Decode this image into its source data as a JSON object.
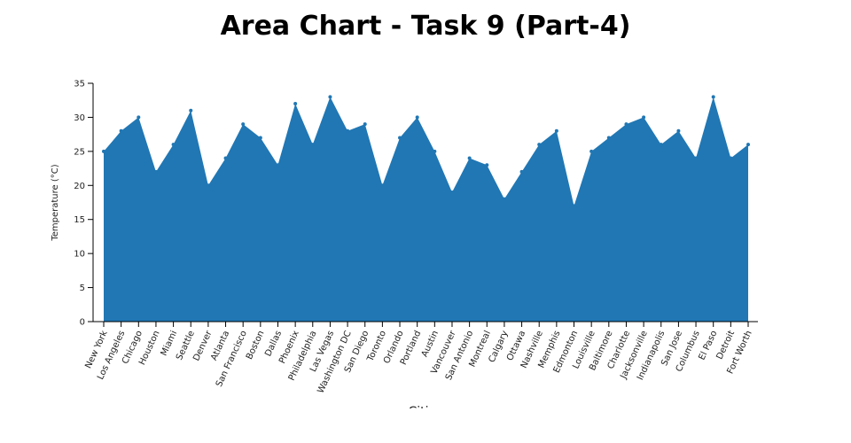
{
  "chart_data": {
    "type": "area",
    "title": "Area Chart - Task 9 (Part-4)",
    "xlabel": "Cities",
    "ylabel": "Temperature (°C)",
    "ylim": [
      0,
      35
    ],
    "yticks": [
      0,
      5,
      10,
      15,
      20,
      25,
      30,
      35
    ],
    "grid": false,
    "color": "#2077b4",
    "categories": [
      "New York",
      "Los Angeles",
      "Chicago",
      "Houston",
      "Miami",
      "Seattle",
      "Denver",
      "Atlanta",
      "San Francisco",
      "Boston",
      "Dallas",
      "Phoenix",
      "Philadelphia",
      "Las Vegas",
      "Washington DC",
      "San Diego",
      "Toronto",
      "Orlando",
      "Portland",
      "Austin",
      "Vancouver",
      "San Antonio",
      "Montreal",
      "Calgary",
      "Ottawa",
      "Nashville",
      "Memphis",
      "Edmonton",
      "Louisville",
      "Baltimore",
      "Charlotte",
      "Jacksonville",
      "Indianapolis",
      "San Jose",
      "Columbus",
      "El Paso",
      "Detroit",
      "Fort Worth"
    ],
    "values": [
      25,
      28,
      30,
      22,
      26,
      31,
      20,
      24,
      29,
      27,
      23,
      32,
      26,
      33,
      28,
      29,
      20,
      27,
      30,
      25,
      19,
      24,
      23,
      18,
      22,
      26,
      28,
      17,
      25,
      27,
      29,
      30,
      26,
      28,
      24,
      33,
      24,
      26
    ]
  }
}
